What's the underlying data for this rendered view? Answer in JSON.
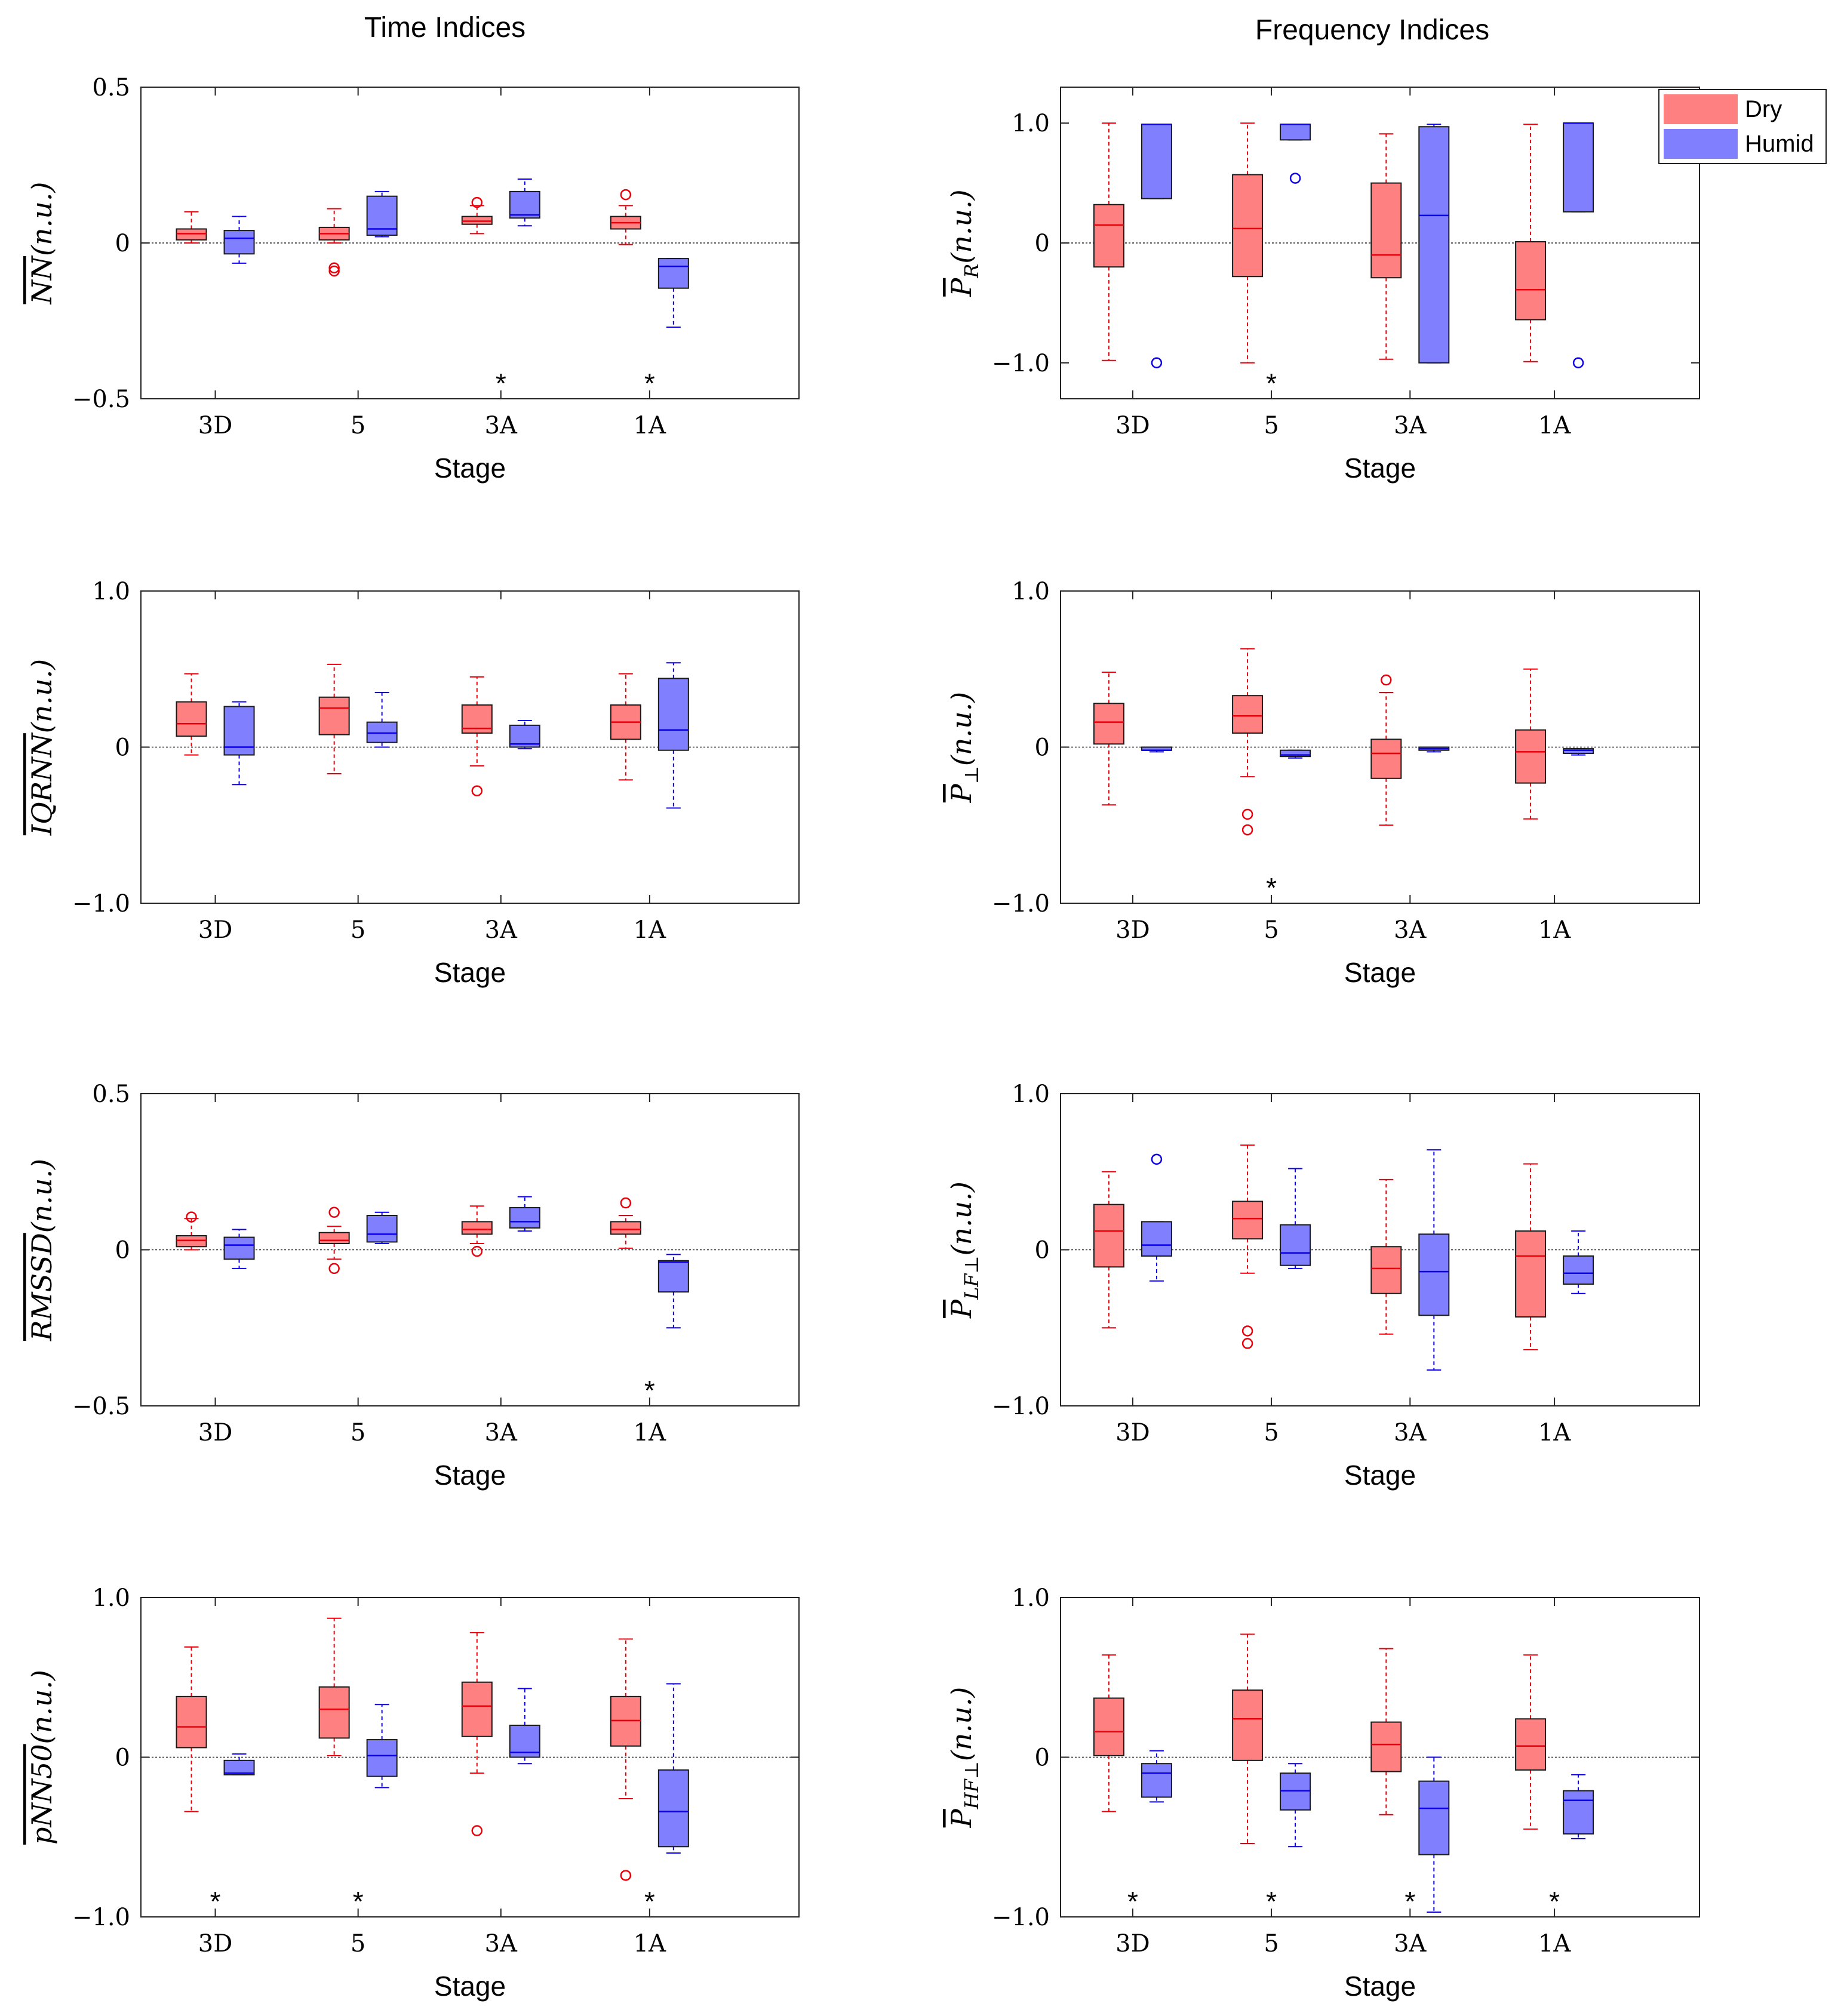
{
  "column_titles": [
    "Time Indices",
    "Frequency Indices"
  ],
  "legend": {
    "entries": [
      {
        "label": "Dry",
        "color": "#ff8080"
      },
      {
        "label": "Humid",
        "color": "#8080ff"
      }
    ]
  },
  "colors": {
    "dry_fill": "#ff8080",
    "dry_line": "#e8000b",
    "humid_fill": "#8080ff",
    "humid_line": "#0b00e8"
  },
  "chart_data": [
    {
      "type": "boxplot",
      "name": "nn",
      "ylabel": "NN",
      "ylabel_suffix": "(n.u.)",
      "ylabel_sub": "",
      "xlabel": "Stage",
      "categories": [
        "3D",
        "5",
        "3A",
        "1A"
      ],
      "ylim": [
        -0.5,
        0.5
      ],
      "yticks": [
        -0.5,
        0,
        0.5
      ],
      "yticklabels": [
        "−0.5",
        "0",
        "0.5"
      ],
      "reference_line": 0,
      "dry": [
        {
          "lw": 0.0,
          "q1": 0.01,
          "med": 0.03,
          "q3": 0.045,
          "uw": 0.1,
          "out": []
        },
        {
          "lw": 0.0,
          "q1": 0.01,
          "med": 0.03,
          "q3": 0.05,
          "uw": 0.11,
          "out": [
            -0.08,
            -0.09
          ]
        },
        {
          "lw": 0.03,
          "q1": 0.06,
          "med": 0.07,
          "q3": 0.085,
          "uw": 0.12,
          "out": [
            0.13
          ]
        },
        {
          "lw": -0.005,
          "q1": 0.045,
          "med": 0.065,
          "q3": 0.085,
          "uw": 0.12,
          "out": [
            0.155
          ]
        }
      ],
      "humid": [
        {
          "lw": -0.065,
          "q1": -0.035,
          "med": 0.015,
          "q3": 0.04,
          "uw": 0.085,
          "out": []
        },
        {
          "lw": 0.02,
          "q1": 0.025,
          "med": 0.045,
          "q3": 0.15,
          "uw": 0.165,
          "out": []
        },
        {
          "lw": 0.055,
          "q1": 0.08,
          "med": 0.09,
          "q3": 0.165,
          "uw": 0.205,
          "out": []
        },
        {
          "lw": -0.27,
          "q1": -0.145,
          "med": -0.075,
          "q3": -0.05,
          "uw": -0.05,
          "out": []
        }
      ],
      "significance": [
        false,
        false,
        true,
        true
      ],
      "sig_mark": "*"
    },
    {
      "type": "boxplot",
      "name": "pr",
      "ylabel": "P",
      "ylabel_suffix": "(n.u.)",
      "ylabel_sub": "R",
      "xlabel": "Stage",
      "categories": [
        "3D",
        "5",
        "3A",
        "1A"
      ],
      "ylim": [
        -1.3,
        1.3
      ],
      "yticks": [
        -1,
        0,
        1
      ],
      "yticklabels": [
        "−1.0",
        "0",
        "1.0"
      ],
      "reference_line": 0,
      "dry": [
        {
          "lw": -0.98,
          "q1": -0.2,
          "med": 0.15,
          "q3": 0.32,
          "uw": 1.0,
          "out": []
        },
        {
          "lw": -1.0,
          "q1": -0.28,
          "med": 0.12,
          "q3": 0.57,
          "uw": 1.0,
          "out": []
        },
        {
          "lw": -0.97,
          "q1": -0.29,
          "med": -0.1,
          "q3": 0.5,
          "uw": 0.91,
          "out": []
        },
        {
          "lw": -0.99,
          "q1": -0.64,
          "med": -0.39,
          "q3": 0.01,
          "uw": 0.99,
          "out": []
        }
      ],
      "humid": [
        {
          "lw": 0.37,
          "q1": 0.37,
          "med": 0.99,
          "q3": 0.99,
          "uw": 0.99,
          "out": [
            -1.0
          ]
        },
        {
          "lw": 0.86,
          "q1": 0.86,
          "med": 0.99,
          "q3": 0.99,
          "uw": 0.99,
          "out": [
            0.54
          ]
        },
        {
          "lw": -1.0,
          "q1": -1.0,
          "med": 0.23,
          "q3": 0.97,
          "uw": 0.99,
          "out": []
        },
        {
          "lw": 0.26,
          "q1": 0.26,
          "med": 1.0,
          "q3": 1.0,
          "uw": 1.0,
          "out": [
            -1.0
          ]
        }
      ],
      "significance": [
        false,
        true,
        false,
        false
      ],
      "sig_mark": "*"
    },
    {
      "type": "boxplot",
      "name": "iqrnn",
      "ylabel": "IQRNN",
      "ylabel_suffix": "(n.u.)",
      "ylabel_sub": "",
      "xlabel": "Stage",
      "categories": [
        "3D",
        "5",
        "3A",
        "1A"
      ],
      "ylim": [
        -1,
        1
      ],
      "yticks": [
        -1,
        0,
        1
      ],
      "yticklabels": [
        "−1.0",
        "0",
        "1.0"
      ],
      "reference_line": 0,
      "dry": [
        {
          "lw": -0.05,
          "q1": 0.07,
          "med": 0.15,
          "q3": 0.29,
          "uw": 0.47,
          "out": []
        },
        {
          "lw": -0.17,
          "q1": 0.08,
          "med": 0.25,
          "q3": 0.32,
          "uw": 0.53,
          "out": []
        },
        {
          "lw": -0.12,
          "q1": 0.09,
          "med": 0.12,
          "q3": 0.27,
          "uw": 0.45,
          "out": [
            -0.28
          ]
        },
        {
          "lw": -0.21,
          "q1": 0.05,
          "med": 0.16,
          "q3": 0.27,
          "uw": 0.47,
          "out": []
        }
      ],
      "humid": [
        {
          "lw": -0.24,
          "q1": -0.05,
          "med": 0.0,
          "q3": 0.26,
          "uw": 0.29,
          "out": []
        },
        {
          "lw": 0.0,
          "q1": 0.03,
          "med": 0.09,
          "q3": 0.16,
          "uw": 0.35,
          "out": []
        },
        {
          "lw": -0.01,
          "q1": 0.0,
          "med": 0.02,
          "q3": 0.14,
          "uw": 0.17,
          "out": []
        },
        {
          "lw": -0.39,
          "q1": -0.02,
          "med": 0.11,
          "q3": 0.44,
          "uw": 0.54,
          "out": []
        }
      ],
      "significance": [
        false,
        false,
        false,
        false
      ],
      "sig_mark": "*"
    },
    {
      "type": "boxplot",
      "name": "pperp",
      "ylabel": "P",
      "ylabel_suffix": "(n.u.)",
      "ylabel_sub": "⊥",
      "xlabel": "Stage",
      "categories": [
        "3D",
        "5",
        "3A",
        "1A"
      ],
      "ylim": [
        -1,
        1
      ],
      "yticks": [
        -1,
        0,
        1
      ],
      "yticklabels": [
        "−1.0",
        "0",
        "1.0"
      ],
      "reference_line": 0,
      "dry": [
        {
          "lw": -0.37,
          "q1": 0.02,
          "med": 0.16,
          "q3": 0.28,
          "uw": 0.48,
          "out": []
        },
        {
          "lw": -0.19,
          "q1": 0.09,
          "med": 0.2,
          "q3": 0.33,
          "uw": 0.63,
          "out": [
            -0.43,
            -0.53
          ]
        },
        {
          "lw": -0.5,
          "q1": -0.2,
          "med": -0.04,
          "q3": 0.05,
          "uw": 0.35,
          "out": [
            0.43
          ]
        },
        {
          "lw": -0.46,
          "q1": -0.23,
          "med": -0.03,
          "q3": 0.11,
          "uw": 0.5,
          "out": []
        }
      ],
      "humid": [
        {
          "lw": -0.03,
          "q1": -0.02,
          "med": -0.02,
          "q3": 0.0,
          "uw": 0.0,
          "out": []
        },
        {
          "lw": -0.07,
          "q1": -0.06,
          "med": -0.05,
          "q3": -0.02,
          "uw": -0.02,
          "out": []
        },
        {
          "lw": -0.03,
          "q1": -0.02,
          "med": -0.01,
          "q3": 0.0,
          "uw": 0.0,
          "out": []
        },
        {
          "lw": -0.05,
          "q1": -0.04,
          "med": -0.02,
          "q3": -0.01,
          "uw": -0.01,
          "out": []
        }
      ],
      "significance": [
        false,
        true,
        false,
        false
      ],
      "sig_mark": "*"
    },
    {
      "type": "boxplot",
      "name": "rmssd",
      "ylabel": "RMSSD",
      "ylabel_suffix": "(n.u.)",
      "ylabel_sub": "",
      "xlabel": "Stage",
      "categories": [
        "3D",
        "5",
        "3A",
        "1A"
      ],
      "ylim": [
        -0.5,
        0.5
      ],
      "yticks": [
        -0.5,
        0,
        0.5
      ],
      "yticklabels": [
        "−0.5",
        "0",
        "0.5"
      ],
      "reference_line": 0,
      "dry": [
        {
          "lw": 0.0,
          "q1": 0.01,
          "med": 0.03,
          "q3": 0.045,
          "uw": 0.1,
          "out": [
            0.105
          ]
        },
        {
          "lw": -0.03,
          "q1": 0.02,
          "med": 0.03,
          "q3": 0.055,
          "uw": 0.075,
          "out": [
            0.12,
            -0.06
          ]
        },
        {
          "lw": 0.02,
          "q1": 0.05,
          "med": 0.065,
          "q3": 0.09,
          "uw": 0.14,
          "out": [
            -0.005
          ]
        },
        {
          "lw": 0.005,
          "q1": 0.05,
          "med": 0.065,
          "q3": 0.09,
          "uw": 0.11,
          "out": [
            0.15
          ]
        }
      ],
      "humid": [
        {
          "lw": -0.06,
          "q1": -0.03,
          "med": 0.015,
          "q3": 0.04,
          "uw": 0.065,
          "out": []
        },
        {
          "lw": 0.02,
          "q1": 0.025,
          "med": 0.05,
          "q3": 0.11,
          "uw": 0.12,
          "out": []
        },
        {
          "lw": 0.06,
          "q1": 0.07,
          "med": 0.09,
          "q3": 0.135,
          "uw": 0.17,
          "out": []
        },
        {
          "lw": -0.25,
          "q1": -0.135,
          "med": -0.04,
          "q3": -0.035,
          "uw": -0.015,
          "out": []
        }
      ],
      "significance": [
        false,
        false,
        false,
        true
      ],
      "sig_mark": "*"
    },
    {
      "type": "boxplot",
      "name": "plfperp",
      "ylabel": "P",
      "ylabel_suffix": "(n.u.)",
      "ylabel_sub": "LF⊥",
      "xlabel": "Stage",
      "categories": [
        "3D",
        "5",
        "3A",
        "1A"
      ],
      "ylim": [
        -1,
        1
      ],
      "yticks": [
        -1,
        0,
        1
      ],
      "yticklabels": [
        "−1.0",
        "0",
        "1.0"
      ],
      "reference_line": 0,
      "dry": [
        {
          "lw": -0.5,
          "q1": -0.11,
          "med": 0.12,
          "q3": 0.29,
          "uw": 0.5,
          "out": []
        },
        {
          "lw": -0.15,
          "q1": 0.07,
          "med": 0.2,
          "q3": 0.31,
          "uw": 0.67,
          "out": [
            -0.52,
            -0.6
          ]
        },
        {
          "lw": -0.54,
          "q1": -0.28,
          "med": -0.12,
          "q3": 0.02,
          "uw": 0.45,
          "out": []
        },
        {
          "lw": -0.64,
          "q1": -0.43,
          "med": -0.04,
          "q3": 0.12,
          "uw": 0.55,
          "out": []
        }
      ],
      "humid": [
        {
          "lw": -0.2,
          "q1": -0.04,
          "med": 0.03,
          "q3": 0.18,
          "uw": 0.18,
          "out": [
            0.58
          ]
        },
        {
          "lw": -0.12,
          "q1": -0.1,
          "med": -0.02,
          "q3": 0.16,
          "uw": 0.52,
          "out": []
        },
        {
          "lw": -0.77,
          "q1": -0.42,
          "med": -0.14,
          "q3": 0.1,
          "uw": 0.64,
          "out": []
        },
        {
          "lw": -0.28,
          "q1": -0.22,
          "med": -0.15,
          "q3": -0.04,
          "uw": 0.12,
          "out": []
        }
      ],
      "significance": [
        false,
        false,
        false,
        false
      ],
      "sig_mark": "*"
    },
    {
      "type": "boxplot",
      "name": "pnn50",
      "ylabel": "pNN50",
      "ylabel_suffix": "(n.u.)",
      "ylabel_sub": "",
      "xlabel": "Stage",
      "categories": [
        "3D",
        "5",
        "3A",
        "1A"
      ],
      "ylim": [
        -1,
        1
      ],
      "yticks": [
        -1,
        0,
        1
      ],
      "yticklabels": [
        "−1.0",
        "0",
        "1.0"
      ],
      "reference_line": 0,
      "dry": [
        {
          "lw": -0.34,
          "q1": 0.06,
          "med": 0.19,
          "q3": 0.38,
          "uw": 0.69,
          "out": []
        },
        {
          "lw": 0.01,
          "q1": 0.12,
          "med": 0.3,
          "q3": 0.44,
          "uw": 0.87,
          "out": []
        },
        {
          "lw": -0.1,
          "q1": 0.13,
          "med": 0.32,
          "q3": 0.47,
          "uw": 0.78,
          "out": [
            -0.46
          ]
        },
        {
          "lw": -0.26,
          "q1": 0.07,
          "med": 0.23,
          "q3": 0.38,
          "uw": 0.74,
          "out": [
            -0.74
          ]
        }
      ],
      "humid": [
        {
          "lw": -0.11,
          "q1": -0.11,
          "med": -0.1,
          "q3": -0.02,
          "uw": 0.02,
          "out": []
        },
        {
          "lw": -0.19,
          "q1": -0.12,
          "med": 0.01,
          "q3": 0.11,
          "uw": 0.33,
          "out": []
        },
        {
          "lw": -0.04,
          "q1": 0.0,
          "med": 0.03,
          "q3": 0.2,
          "uw": 0.43,
          "out": []
        },
        {
          "lw": -0.6,
          "q1": -0.56,
          "med": -0.34,
          "q3": -0.08,
          "uw": 0.46,
          "out": []
        }
      ],
      "significance": [
        true,
        true,
        false,
        true
      ],
      "sig_mark": "*"
    },
    {
      "type": "boxplot",
      "name": "phfperp",
      "ylabel": "P",
      "ylabel_suffix": "(n.u.)",
      "ylabel_sub": "HF⊥",
      "xlabel": "Stage",
      "categories": [
        "3D",
        "5",
        "3A",
        "1A"
      ],
      "ylim": [
        -1,
        1
      ],
      "yticks": [
        -1,
        0,
        1
      ],
      "yticklabels": [
        "−1.0",
        "0",
        "1.0"
      ],
      "reference_line": 0,
      "dry": [
        {
          "lw": -0.34,
          "q1": 0.01,
          "med": 0.16,
          "q3": 0.37,
          "uw": 0.64,
          "out": []
        },
        {
          "lw": -0.54,
          "q1": -0.02,
          "med": 0.24,
          "q3": 0.42,
          "uw": 0.77,
          "out": []
        },
        {
          "lw": -0.36,
          "q1": -0.09,
          "med": 0.08,
          "q3": 0.22,
          "uw": 0.68,
          "out": []
        },
        {
          "lw": -0.45,
          "q1": -0.08,
          "med": 0.07,
          "q3": 0.24,
          "uw": 0.64,
          "out": []
        }
      ],
      "humid": [
        {
          "lw": -0.28,
          "q1": -0.25,
          "med": -0.1,
          "q3": -0.04,
          "uw": 0.04,
          "out": []
        },
        {
          "lw": -0.56,
          "q1": -0.33,
          "med": -0.21,
          "q3": -0.1,
          "uw": -0.04,
          "out": []
        },
        {
          "lw": -0.97,
          "q1": -0.61,
          "med": -0.32,
          "q3": -0.15,
          "uw": 0.0,
          "out": []
        },
        {
          "lw": -0.51,
          "q1": -0.48,
          "med": -0.27,
          "q3": -0.21,
          "uw": -0.11,
          "out": []
        }
      ],
      "significance": [
        true,
        true,
        true,
        true
      ],
      "sig_mark": "*"
    }
  ]
}
